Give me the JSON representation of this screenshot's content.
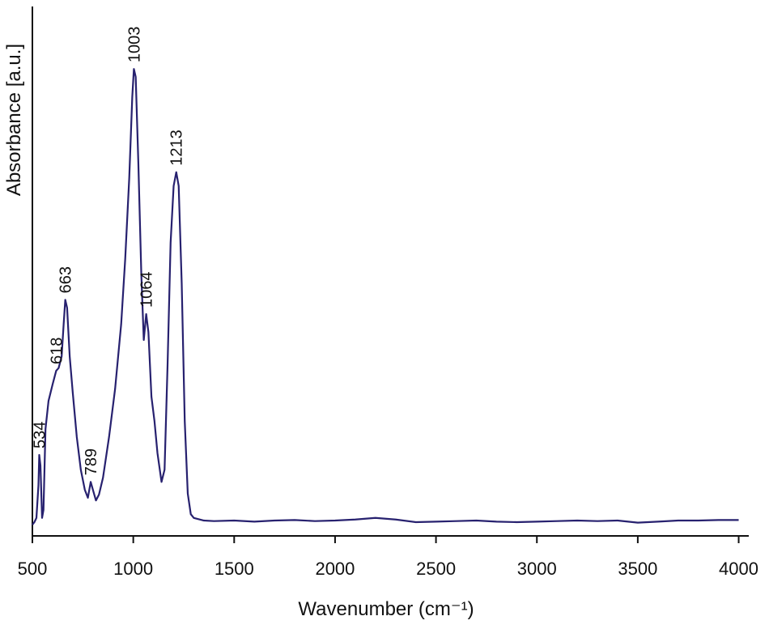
{
  "chart_data": {
    "type": "line",
    "x_label": "Wavenumber (cm⁻¹)",
    "y_label": "Absorbance [a.u.]",
    "xlim": [
      500,
      4050
    ],
    "ylim": [
      0,
      100
    ],
    "xticks": [
      500,
      1000,
      1500,
      2000,
      2500,
      3000,
      3500,
      4000
    ],
    "series": [
      {
        "color": "#27216f",
        "x": [
          500,
          510,
          520,
          530,
          534,
          540,
          548,
          555,
          565,
          580,
          600,
          618,
          630,
          645,
          655,
          663,
          672,
          685,
          700,
          720,
          740,
          760,
          775,
          789,
          800,
          815,
          830,
          850,
          880,
          910,
          940,
          960,
          980,
          995,
          1003,
          1012,
          1025,
          1040,
          1052,
          1064,
          1075,
          1090,
          1105,
          1120,
          1140,
          1155,
          1170,
          1185,
          1200,
          1213,
          1225,
          1240,
          1255,
          1270,
          1285,
          1300,
          1350,
          1400,
          1500,
          1600,
          1700,
          1800,
          1900,
          2000,
          2100,
          2200,
          2300,
          2400,
          2500,
          2600,
          2700,
          2800,
          2900,
          3000,
          3100,
          3200,
          3300,
          3400,
          3500,
          3600,
          3700,
          3800,
          3900,
          4000
        ],
        "values": [
          2.1,
          2.6,
          3.4,
          9.5,
          15.3,
          13.3,
          3.4,
          4.9,
          20.2,
          25.5,
          28.6,
          31.2,
          31.7,
          33.9,
          40.0,
          44.6,
          43.1,
          33.9,
          27.1,
          18.7,
          12.5,
          8.7,
          7.2,
          10.2,
          8.7,
          6.7,
          7.8,
          11.0,
          18.7,
          27.8,
          40.0,
          52.3,
          67.6,
          82.9,
          88.2,
          86.7,
          70.6,
          49.2,
          37.0,
          41.9,
          38.5,
          26.3,
          21.7,
          15.6,
          10.2,
          12.5,
          32.4,
          55.4,
          66.1,
          68.7,
          66.1,
          47.7,
          21.7,
          8.0,
          4.1,
          3.4,
          2.9,
          2.8,
          2.9,
          2.7,
          2.9,
          3.0,
          2.8,
          2.9,
          3.1,
          3.4,
          3.1,
          2.6,
          2.7,
          2.8,
          2.9,
          2.7,
          2.6,
          2.7,
          2.8,
          2.9,
          2.8,
          2.9,
          2.5,
          2.7,
          2.9,
          2.9,
          3.0,
          3.0
        ]
      }
    ],
    "annotations": [
      {
        "text": "534",
        "x": 534,
        "y": 15.3
      },
      {
        "text": "618",
        "x": 618,
        "y": 31.2
      },
      {
        "text": "663",
        "x": 663,
        "y": 44.6
      },
      {
        "text": "789",
        "x": 789,
        "y": 10.2
      },
      {
        "text": "1003",
        "x": 1003,
        "y": 88.2
      },
      {
        "text": "1064",
        "x": 1064,
        "y": 41.9
      },
      {
        "text": "1213",
        "x": 1213,
        "y": 68.7
      }
    ]
  }
}
